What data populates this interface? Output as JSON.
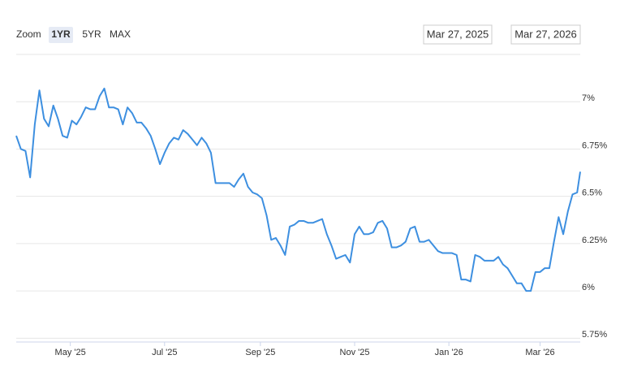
{
  "range_selector": {
    "label": "Zoom",
    "buttons": [
      "1YR",
      "5YR",
      "MAX"
    ],
    "selected": 0,
    "separator": "→"
  },
  "chart_data": {
    "type": "line",
    "x": [
      "2025-03-27",
      "2025-03-30",
      "2025-04-02",
      "2025-04-05",
      "2025-04-08",
      "2025-04-11",
      "2025-04-14",
      "2025-04-17",
      "2025-04-20",
      "2025-04-23",
      "2025-04-26",
      "2025-04-29",
      "2025-05-02",
      "2025-05-05",
      "2025-05-08",
      "2025-05-11",
      "2025-05-14",
      "2025-05-17",
      "2025-05-20",
      "2025-05-23",
      "2025-05-26",
      "2025-05-29",
      "2025-06-01",
      "2025-06-04",
      "2025-06-07",
      "2025-06-10",
      "2025-06-13",
      "2025-06-16",
      "2025-06-19",
      "2025-06-22",
      "2025-06-25",
      "2025-06-28",
      "2025-07-01",
      "2025-07-04",
      "2025-07-07",
      "2025-07-10",
      "2025-07-13",
      "2025-07-16",
      "2025-07-19",
      "2025-07-22",
      "2025-07-25",
      "2025-07-28",
      "2025-07-31",
      "2025-08-03",
      "2025-08-06",
      "2025-08-09",
      "2025-08-12",
      "2025-08-15",
      "2025-08-18",
      "2025-08-21",
      "2025-08-24",
      "2025-08-27",
      "2025-08-30",
      "2025-09-02",
      "2025-09-05",
      "2025-09-08",
      "2025-09-11",
      "2025-09-14",
      "2025-09-17",
      "2025-09-20",
      "2025-09-23",
      "2025-09-26",
      "2025-09-29",
      "2025-10-02",
      "2025-10-05",
      "2025-10-08",
      "2025-10-11",
      "2025-10-14",
      "2025-10-17",
      "2025-10-20",
      "2025-10-23",
      "2025-10-26",
      "2025-10-29",
      "2025-11-01",
      "2025-11-04",
      "2025-11-07",
      "2025-11-10",
      "2025-11-13",
      "2025-11-16",
      "2025-11-19",
      "2025-11-22",
      "2025-11-25",
      "2025-11-28",
      "2025-12-01",
      "2025-12-04",
      "2025-12-07",
      "2025-12-10",
      "2025-12-13",
      "2025-12-16",
      "2025-12-19",
      "2025-12-22",
      "2025-12-25",
      "2025-12-28",
      "2025-12-31",
      "2026-01-03",
      "2026-01-06",
      "2026-01-09",
      "2026-01-12",
      "2026-01-15",
      "2026-01-18",
      "2026-01-21",
      "2026-01-24",
      "2026-01-27",
      "2026-01-30",
      "2026-02-02",
      "2026-02-05",
      "2026-02-08",
      "2026-02-11",
      "2026-02-14",
      "2026-02-17",
      "2026-02-20",
      "2026-02-23",
      "2026-02-26",
      "2026-03-01",
      "2026-03-04",
      "2026-03-07",
      "2026-03-10",
      "2026-03-13",
      "2026-03-16",
      "2026-03-19",
      "2026-03-22",
      "2026-03-25",
      "2026-03-27"
    ],
    "series": [
      {
        "color": "#3d8fe0",
        "values": [
          6.82,
          6.75,
          6.74,
          6.6,
          6.88,
          7.06,
          6.91,
          6.87,
          6.98,
          6.91,
          6.82,
          6.81,
          6.9,
          6.88,
          6.92,
          6.97,
          6.96,
          6.96,
          7.03,
          7.07,
          6.97,
          6.97,
          6.96,
          6.88,
          6.97,
          6.94,
          6.89,
          6.89,
          6.86,
          6.82,
          6.75,
          6.67,
          6.73,
          6.78,
          6.81,
          6.8,
          6.85,
          6.83,
          6.8,
          6.77,
          6.81,
          6.78,
          6.73,
          6.57,
          6.57,
          6.57,
          6.57,
          6.55,
          6.59,
          6.62,
          6.55,
          6.52,
          6.51,
          6.49,
          6.4,
          6.27,
          6.28,
          6.24,
          6.19,
          6.34,
          6.35,
          6.37,
          6.37,
          6.36,
          6.36,
          6.37,
          6.38,
          6.3,
          6.24,
          6.17,
          6.18,
          6.19,
          6.15,
          6.3,
          6.34,
          6.3,
          6.3,
          6.31,
          6.36,
          6.37,
          6.33,
          6.23,
          6.23,
          6.24,
          6.26,
          6.33,
          6.34,
          6.26,
          6.26,
          6.27,
          6.24,
          6.21,
          6.2,
          6.2,
          6.2,
          6.19,
          6.06,
          6.06,
          6.05,
          6.19,
          6.18,
          6.16,
          6.16,
          6.16,
          6.18,
          6.14,
          6.12,
          6.08,
          6.04,
          6.04,
          6.0,
          6.0,
          6.1,
          6.1,
          6.12,
          6.12,
          6.26,
          6.39,
          6.3,
          6.42,
          6.51,
          6.52,
          6.63
        ]
      }
    ],
    "xlim": [
      {
        "value": "2025-03-27",
        "label": "Mar 27, 2025"
      },
      {
        "value": "2026-03-27",
        "label": "Mar 27, 2026"
      }
    ],
    "xticks": [
      {
        "value": "2025-05-01",
        "label": "May '25"
      },
      {
        "value": "2025-07-01",
        "label": "Jul '25"
      },
      {
        "value": "2025-09-01",
        "label": "Sep '25"
      },
      {
        "value": "2025-11-01",
        "label": "Nov '25"
      },
      {
        "value": "2026-01-01",
        "label": "Jan '26"
      },
      {
        "value": "2026-03-01",
        "label": "Mar '26"
      }
    ],
    "ylim": [
      5.73,
      7.25
    ],
    "yticks": [
      {
        "value": 5.75,
        "label": "5.75%"
      },
      {
        "value": 6,
        "label": "6%"
      },
      {
        "value": 6.25,
        "label": "6.25%"
      },
      {
        "value": 6.5,
        "label": "6.5%"
      },
      {
        "value": 6.75,
        "label": "6.75%"
      },
      {
        "value": 7,
        "label": "7%"
      }
    ],
    "grid": true
  }
}
